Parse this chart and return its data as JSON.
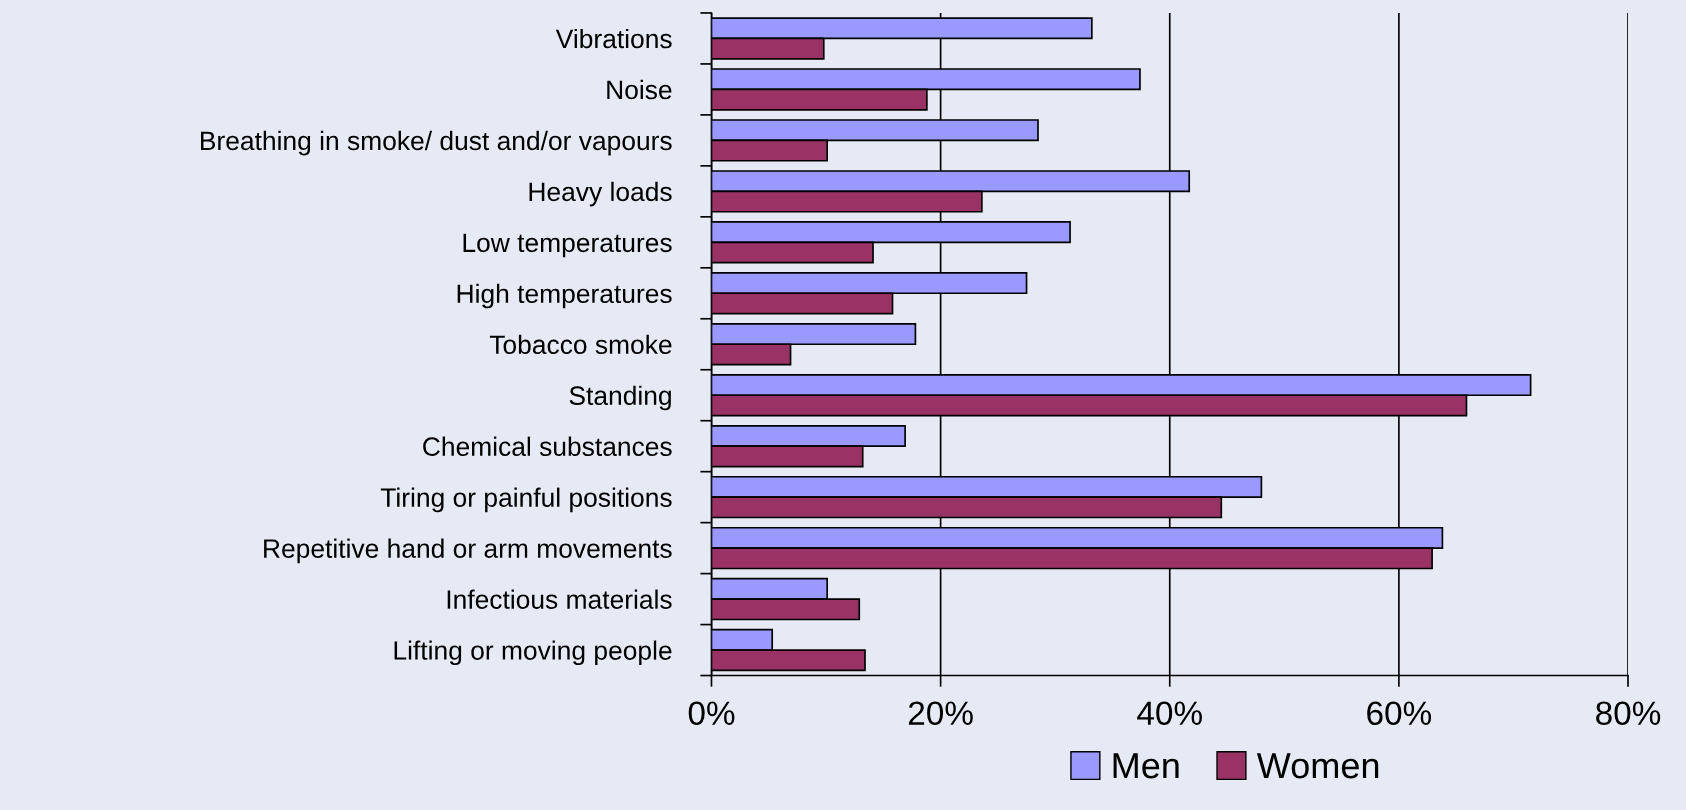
{
  "chart_data": {
    "type": "bar",
    "orientation": "horizontal",
    "categories": [
      "Vibrations",
      "Noise",
      "Breathing in smoke/ dust and/or vapours",
      "Heavy loads",
      "Low temperatures",
      "High temperatures",
      "Tobacco smoke",
      "Standing",
      "Chemical substances",
      "Tiring or painful positions",
      "Repetitive hand or arm movements",
      "Infectious materials",
      "Lifting or moving people"
    ],
    "series": [
      {
        "name": "Men",
        "color": "#9999ff",
        "values": [
          33.2,
          37.4,
          28.5,
          41.7,
          31.3,
          27.5,
          17.8,
          71.5,
          16.9,
          48.0,
          63.8,
          10.1,
          5.3
        ]
      },
      {
        "name": "Women",
        "color": "#993366",
        "values": [
          9.8,
          18.8,
          10.1,
          23.6,
          14.1,
          15.8,
          6.9,
          65.9,
          13.2,
          44.5,
          62.9,
          12.9,
          13.4
        ]
      }
    ],
    "xlim": [
      0,
      80
    ],
    "xticks": [
      {
        "value": 0,
        "label": "0%"
      },
      {
        "value": 20,
        "label": "20%"
      },
      {
        "value": 40,
        "label": "40%"
      },
      {
        "value": 60,
        "label": "60%"
      },
      {
        "value": 80,
        "label": "80%"
      }
    ],
    "grid": "x",
    "legend": "bottom"
  }
}
